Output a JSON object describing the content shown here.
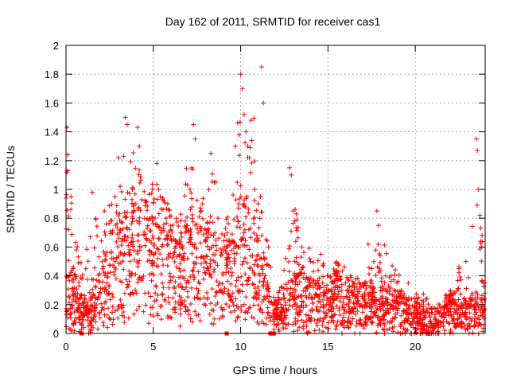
{
  "chart_data": {
    "type": "scatter",
    "title": "Day 162 of 2011, SRMTID for receiver cas1",
    "xlabel": "GPS time / hours",
    "ylabel": "SRMTID / TECUs",
    "xlim": [
      0,
      24
    ],
    "ylim": [
      0,
      2
    ],
    "x_ticks": [
      "0",
      "5",
      "10",
      "15",
      "20"
    ],
    "x_tick_values": [
      0,
      5,
      10,
      15,
      20
    ],
    "y_ticks": [
      "0",
      "0.2",
      "0.4",
      "0.6",
      "0.8",
      "1",
      "1.2",
      "1.4",
      "1.6",
      "1.8",
      "2"
    ],
    "y_tick_values": [
      0,
      0.2,
      0.4,
      0.6,
      0.8,
      1.0,
      1.2,
      1.4,
      1.6,
      1.8,
      2.0
    ],
    "grid": true,
    "marker": "+",
    "color": "#ff0000",
    "envelope_hours": [
      0,
      0.5,
      1,
      1.5,
      2,
      2.5,
      3,
      3.5,
      4,
      4.5,
      5,
      5.5,
      6,
      6.5,
      7,
      7.5,
      8,
      8.5,
      9,
      9.5,
      10,
      10.5,
      11,
      11.5,
      12,
      12.5,
      13,
      13.5,
      14,
      14.5,
      15,
      15.5,
      16,
      16.5,
      17,
      17.5,
      18,
      18.5,
      19,
      19.5,
      20,
      20.5,
      21,
      21.5,
      22,
      22.5,
      23,
      23.5,
      24
    ],
    "envelope_median": [
      0.25,
      0.2,
      0.12,
      0.15,
      0.25,
      0.35,
      0.45,
      0.55,
      0.6,
      0.55,
      0.5,
      0.45,
      0.45,
      0.4,
      0.45,
      0.5,
      0.45,
      0.4,
      0.4,
      0.4,
      0.55,
      0.5,
      0.45,
      0.25,
      0.08,
      0.15,
      0.25,
      0.25,
      0.2,
      0.2,
      0.22,
      0.25,
      0.2,
      0.18,
      0.18,
      0.2,
      0.2,
      0.15,
      0.15,
      0.12,
      0.1,
      0.08,
      0.05,
      0.1,
      0.15,
      0.15,
      0.12,
      0.15,
      0.2
    ],
    "envelope_max": [
      1.43,
      0.8,
      0.45,
      0.98,
      0.9,
      0.95,
      1.25,
      1.5,
      1.45,
      1.0,
      1.2,
      1.0,
      0.95,
      0.8,
      1.46,
      1.3,
      1.0,
      1.25,
      0.6,
      1.35,
      1.8,
      1.5,
      1.85,
      0.7,
      0.3,
      0.5,
      1.15,
      0.75,
      0.65,
      0.55,
      0.5,
      0.55,
      0.5,
      0.45,
      0.4,
      0.6,
      0.85,
      0.55,
      0.45,
      0.35,
      0.3,
      0.3,
      0.2,
      0.25,
      0.3,
      0.5,
      0.4,
      1.35,
      0.4
    ],
    "points": [
      [
        0.05,
        1.43
      ],
      [
        0.1,
        1.24
      ],
      [
        0.05,
        1.12
      ],
      [
        0.0,
        0.94
      ],
      [
        0.15,
        0.72
      ],
      [
        0.4,
        0.45
      ],
      [
        0.6,
        0.22
      ],
      [
        0.9,
        0.03
      ],
      [
        1.5,
        0.98
      ],
      [
        1.7,
        0.8
      ],
      [
        2.2,
        0.85
      ],
      [
        2.8,
        0.95
      ],
      [
        3.0,
        1.22
      ],
      [
        3.1,
        1.02
      ],
      [
        3.4,
        1.5
      ],
      [
        3.5,
        1.45
      ],
      [
        3.3,
        1.23
      ],
      [
        3.8,
        1.0
      ],
      [
        4.1,
        1.43
      ],
      [
        4.2,
        1.3
      ],
      [
        4.0,
        0.9
      ],
      [
        4.5,
        0.8
      ],
      [
        5.2,
        1.18
      ],
      [
        5.3,
        1.0
      ],
      [
        5.6,
        0.92
      ],
      [
        6.0,
        0.72
      ],
      [
        6.5,
        0.65
      ],
      [
        7.3,
        1.45
      ],
      [
        7.4,
        1.35
      ],
      [
        7.2,
        1.15
      ],
      [
        7.1,
        1.0
      ],
      [
        7.8,
        0.9
      ],
      [
        8.3,
        1.25
      ],
      [
        8.5,
        1.05
      ],
      [
        8.7,
        0.8
      ],
      [
        9.3,
        0.55
      ],
      [
        9.7,
        1.3
      ],
      [
        9.8,
        1.05
      ],
      [
        10.0,
        1.8
      ],
      [
        10.1,
        1.7
      ],
      [
        10.2,
        1.52
      ],
      [
        10.3,
        1.4
      ],
      [
        10.4,
        1.3
      ],
      [
        10.5,
        1.22
      ],
      [
        10.6,
        1.48
      ],
      [
        10.8,
        1.0
      ],
      [
        11.0,
        0.9
      ],
      [
        11.2,
        1.85
      ],
      [
        11.3,
        1.6
      ],
      [
        11.1,
        0.8
      ],
      [
        11.6,
        0.6
      ],
      [
        11.9,
        0.25
      ],
      [
        12.1,
        0.1
      ],
      [
        12.3,
        0.2
      ],
      [
        12.8,
        1.15
      ],
      [
        12.9,
        1.1
      ],
      [
        13.0,
        0.85
      ],
      [
        13.1,
        0.5
      ],
      [
        13.5,
        0.6
      ],
      [
        14.0,
        0.5
      ],
      [
        14.6,
        0.55
      ],
      [
        15.0,
        0.4
      ],
      [
        15.5,
        0.4
      ],
      [
        16.0,
        0.35
      ],
      [
        16.5,
        0.32
      ],
      [
        17.3,
        0.62
      ],
      [
        17.5,
        0.45
      ],
      [
        17.8,
        0.85
      ],
      [
        17.9,
        0.75
      ],
      [
        18.3,
        0.4
      ],
      [
        18.8,
        0.3
      ],
      [
        19.2,
        0.3
      ],
      [
        19.6,
        0.35
      ],
      [
        20.0,
        0.22
      ],
      [
        20.5,
        0.15
      ],
      [
        21.0,
        0.05
      ],
      [
        21.5,
        0.12
      ],
      [
        22.0,
        0.25
      ],
      [
        22.5,
        0.45
      ],
      [
        22.9,
        0.5
      ],
      [
        23.5,
        1.35
      ],
      [
        23.55,
        1.27
      ],
      [
        23.6,
        1.0
      ],
      [
        23.7,
        0.82
      ],
      [
        23.8,
        0.6
      ],
      [
        23.9,
        0.35
      ]
    ],
    "baseline_markers_hours": [
      0.9,
      9.2,
      11.7,
      11.9
    ]
  }
}
